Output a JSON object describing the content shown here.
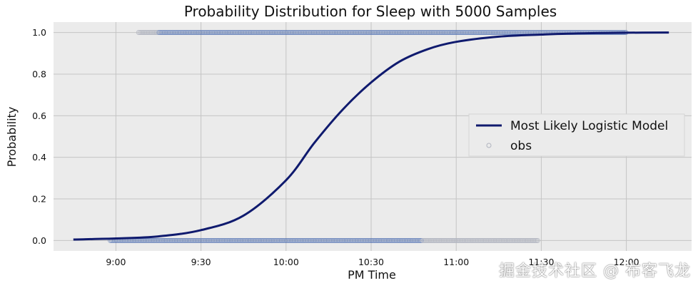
{
  "watermark": "掘金技术社区 @ 布客飞龙",
  "chart_data": {
    "type": "line",
    "title": "Probability Distribution for Sleep with 5000 Samples",
    "xlabel": "PM Time",
    "ylabel": "Probability",
    "xlim": [
      "8:38",
      "12:23"
    ],
    "ylim": [
      -0.05,
      1.05
    ],
    "xticks": [
      {
        "value": "9:00",
        "label": "9:00"
      },
      {
        "value": "9:30",
        "label": "9:30"
      },
      {
        "value": "10:00",
        "label": "10:00"
      },
      {
        "value": "10:30",
        "label": "10:30"
      },
      {
        "value": "11:00",
        "label": "11:00"
      },
      {
        "value": "11:30",
        "label": "11:30"
      },
      {
        "value": "12:00",
        "label": "12:00"
      }
    ],
    "yticks": [
      0.0,
      0.2,
      0.4,
      0.6,
      0.8,
      1.0
    ],
    "ytick_labels": [
      "0.0",
      "0.2",
      "0.4",
      "0.6",
      "0.8",
      "1.0"
    ],
    "grid": true,
    "legend_position": "center-right",
    "background": "#ebebeb",
    "series": [
      {
        "name": "Most Likely Logistic Model",
        "kind": "line",
        "color": "#0f1a6e",
        "x": [
          "8:45",
          "9:00",
          "9:15",
          "9:30",
          "9:45",
          "10:00",
          "10:10",
          "10:20",
          "10:30",
          "10:40",
          "10:50",
          "11:00",
          "11:15",
          "11:30",
          "11:45",
          "12:00",
          "12:15"
        ],
        "y": [
          0.005,
          0.01,
          0.02,
          0.05,
          0.12,
          0.29,
          0.47,
          0.63,
          0.76,
          0.86,
          0.92,
          0.955,
          0.98,
          0.99,
          0.996,
          0.999,
          1.0
        ]
      },
      {
        "name": "obs",
        "kind": "scatter",
        "color": "#4c6db0",
        "color_faint": "#b0b4bf",
        "groups": [
          {
            "y": 1,
            "x_range": [
              "9:08",
              "12:00"
            ],
            "solid_from": "9:15"
          },
          {
            "y": 0,
            "x_range": [
              "8:58",
              "11:29"
            ],
            "solid_until": "10:48"
          }
        ]
      }
    ]
  }
}
